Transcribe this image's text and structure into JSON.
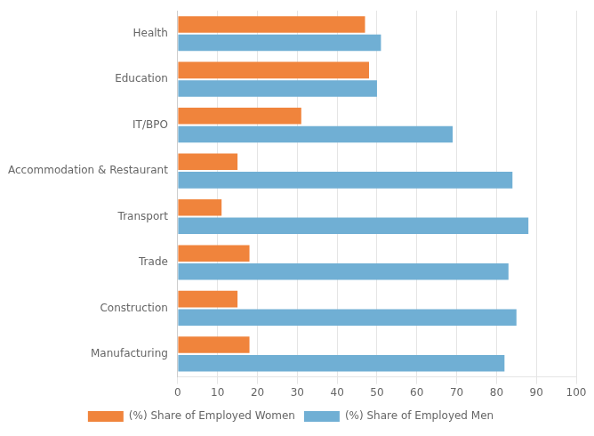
{
  "chart_data": {
    "type": "bar",
    "orientation": "horizontal",
    "categories": [
      "Manufacturing",
      "Construction",
      "Trade",
      "Transport",
      "Accommodation & Restaurant",
      "IT/BPO",
      "Education",
      "Health"
    ],
    "series": [
      {
        "name": "(%) Share of Employed Women",
        "color": "#f0843c",
        "values": [
          18,
          15,
          18,
          11,
          15,
          31,
          48,
          47
        ]
      },
      {
        "name": "(%) Share of Employed Men",
        "color": "#70afd4",
        "values": [
          82,
          85,
          83,
          88,
          84,
          69,
          50,
          51
        ]
      }
    ],
    "xlim": [
      0,
      100
    ],
    "xticks": [
      0,
      10,
      20,
      30,
      40,
      50,
      60,
      70,
      80,
      90,
      100
    ],
    "grid": true,
    "legend": "bottom"
  }
}
